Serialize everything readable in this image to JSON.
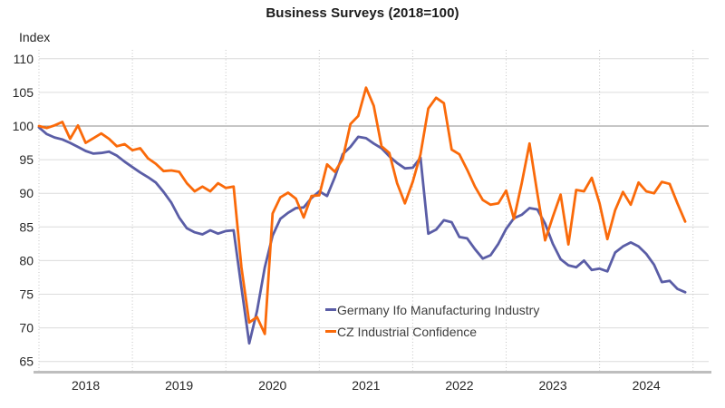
{
  "title": "Business Surveys (2018=100)",
  "y_axis_label": "Index",
  "chart_data": {
    "type": "line",
    "title": "Business Surveys (2018=100)",
    "ylabel": "Index",
    "xlabel": "",
    "frequency": "monthly",
    "x_start": "2018-01",
    "x_end": "2024-12",
    "x_tick_labels": [
      "2018",
      "2019",
      "2020",
      "2021",
      "2022",
      "2023",
      "2024"
    ],
    "y_ticks": [
      65,
      70,
      75,
      80,
      85,
      90,
      95,
      100,
      105,
      110
    ],
    "ylim": [
      63.3,
      111.3
    ],
    "reference_line": 100,
    "grid": {
      "horizontal_gridlines": true,
      "vertical_dotted_year_boundaries": true
    },
    "legend_position": "inside-bottom-center",
    "series": [
      {
        "name": "Germany Ifo Manufacturing Industry",
        "color": "#5A5DA6",
        "values": [
          99.8,
          98.8,
          98.3,
          98.0,
          97.5,
          96.9,
          96.3,
          95.9,
          96.0,
          96.2,
          95.6,
          94.7,
          93.9,
          93.1,
          92.4,
          91.6,
          90.2,
          88.6,
          86.4,
          84.8,
          84.2,
          83.9,
          84.5,
          84.0,
          84.4,
          84.5,
          76.0,
          67.7,
          72.5,
          79.0,
          83.7,
          86.2,
          87.1,
          87.8,
          87.9,
          89.3,
          90.3,
          89.6,
          92.4,
          95.8,
          96.9,
          98.4,
          98.2,
          97.4,
          96.7,
          95.5,
          94.5,
          93.7,
          93.8,
          95.3,
          84.0,
          84.6,
          86.0,
          85.7,
          83.5,
          83.3,
          81.7,
          80.3,
          80.8,
          82.5,
          84.7,
          86.3,
          86.8,
          87.8,
          87.6,
          85.5,
          82.5,
          80.2,
          79.3,
          79.0,
          80.0,
          78.6,
          78.8,
          78.4,
          81.2,
          82.1,
          82.7,
          82.1,
          81.0,
          79.4,
          76.8,
          77.0,
          75.8,
          75.3
        ]
      },
      {
        "name": "CZ Industrial Confidence",
        "color": "#FA6A0A",
        "values": [
          100.0,
          99.7,
          100.1,
          100.6,
          98.1,
          100.1,
          97.5,
          98.2,
          98.9,
          98.1,
          97.0,
          97.3,
          96.4,
          96.7,
          95.2,
          94.4,
          93.3,
          93.4,
          93.2,
          91.5,
          90.3,
          91.0,
          90.3,
          91.5,
          90.8,
          91.0,
          79.0,
          70.8,
          71.6,
          69.1,
          87.0,
          89.4,
          90.1,
          89.2,
          86.4,
          89.6,
          89.7,
          94.3,
          93.2,
          95.1,
          100.3,
          101.5,
          105.7,
          103.0,
          97.0,
          96.0,
          91.5,
          88.5,
          91.7,
          95.8,
          102.6,
          104.2,
          103.4,
          96.5,
          95.8,
          93.5,
          91.0,
          89.0,
          88.3,
          88.5,
          90.4,
          86.2,
          91.5,
          97.4,
          90.0,
          83.0,
          86.5,
          89.8,
          82.4,
          90.5,
          90.3,
          92.3,
          88.5,
          83.2,
          87.5,
          90.2,
          88.3,
          91.6,
          90.3,
          90.0,
          91.7,
          91.4,
          88.5,
          85.8
        ]
      }
    ],
    "colors": {
      "gridline": "#DCDCDC",
      "reference_line": "#8C8C8C",
      "dotted_vertical": "#C4C4C4",
      "axis_line": "#BEBEBE",
      "tick_text": "#262626",
      "title_text": "#1A1A1A"
    }
  }
}
